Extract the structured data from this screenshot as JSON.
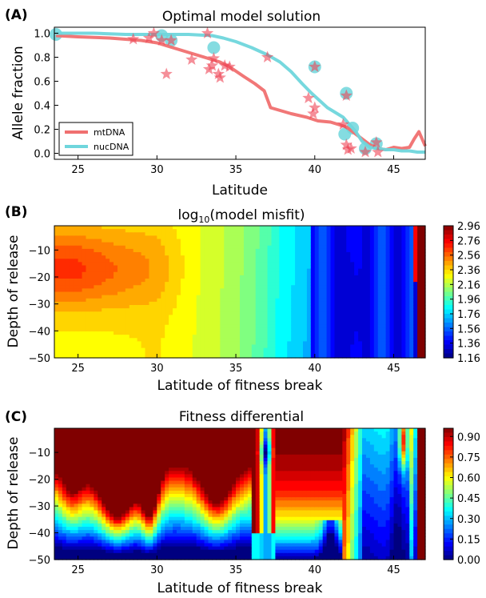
{
  "chart_data": [
    {
      "panel_label": "(A)",
      "type": "line",
      "title": "Optimal model solution",
      "xlabel": "Latitude",
      "ylabel": "Allele fraction",
      "xlim": [
        23.5,
        47.0
      ],
      "ylim": [
        -0.05,
        1.05
      ],
      "xticks": [
        "25",
        "30",
        "35",
        "40",
        "45"
      ],
      "yticks": [
        "0.0",
        "0.2",
        "0.4",
        "0.6",
        "0.8",
        "1.0"
      ],
      "legend": {
        "position": "lower-left",
        "entries": [
          "mtDNA",
          "nucDNA"
        ]
      },
      "series": [
        {
          "name": "mtDNA",
          "color": "#f07070",
          "x": [
            23.6,
            25.0,
            27.0,
            29.0,
            30.0,
            31.0,
            32.0,
            33.0,
            34.0,
            34.6,
            35.5,
            36.2,
            36.8,
            37.2,
            38.5,
            39.5,
            40.2,
            41.0,
            41.5,
            42.0,
            42.5,
            43.0,
            43.5,
            44.0,
            44.5,
            45.0,
            45.5,
            46.0,
            46.3,
            46.6,
            47.0
          ],
          "y": [
            0.98,
            0.97,
            0.96,
            0.94,
            0.92,
            0.88,
            0.84,
            0.8,
            0.76,
            0.72,
            0.64,
            0.58,
            0.52,
            0.38,
            0.33,
            0.3,
            0.27,
            0.26,
            0.24,
            0.22,
            0.17,
            0.12,
            0.07,
            0.04,
            0.03,
            0.05,
            0.04,
            0.05,
            0.12,
            0.18,
            0.06
          ]
        },
        {
          "name": "nucDNA",
          "color": "#6fd6dc",
          "x": [
            23.6,
            26.0,
            28.0,
            30.0,
            32.0,
            33.5,
            34.2,
            35.0,
            36.0,
            37.0,
            37.8,
            38.5,
            39.2,
            39.8,
            40.3,
            40.8,
            41.3,
            41.8,
            42.2,
            42.6,
            43.0,
            43.5,
            44.0,
            44.5,
            45.0,
            45.5,
            46.0,
            46.5,
            47.0
          ],
          "y": [
            1.0,
            1.0,
            0.99,
            0.99,
            0.99,
            0.98,
            0.96,
            0.93,
            0.88,
            0.82,
            0.76,
            0.68,
            0.58,
            0.5,
            0.44,
            0.38,
            0.34,
            0.3,
            0.24,
            0.18,
            0.1,
            0.05,
            0.04,
            0.03,
            0.03,
            0.02,
            0.02,
            0.01,
            0.01
          ]
        },
        {
          "name": "mtDNA observations",
          "marker": "star",
          "color": "#ee4455",
          "points": [
            [
              28.5,
              0.95
            ],
            [
              29.5,
              0.96
            ],
            [
              29.8,
              1.0
            ],
            [
              30.3,
              0.94
            ],
            [
              30.6,
              0.66
            ],
            [
              30.9,
              0.94
            ],
            [
              32.2,
              0.78
            ],
            [
              33.2,
              1.0
            ],
            [
              33.3,
              0.7
            ],
            [
              33.5,
              0.73
            ],
            [
              33.6,
              0.79
            ],
            [
              33.9,
              0.66
            ],
            [
              34.0,
              0.63
            ],
            [
              34.3,
              0.73
            ],
            [
              34.6,
              0.72
            ],
            [
              37.0,
              0.8
            ],
            [
              39.6,
              0.46
            ],
            [
              39.9,
              0.33
            ],
            [
              40.0,
              0.38
            ],
            [
              40.0,
              0.72
            ],
            [
              41.8,
              0.24
            ],
            [
              42.0,
              0.48
            ],
            [
              42.0,
              0.07
            ],
            [
              42.1,
              0.03
            ],
            [
              42.3,
              0.04
            ],
            [
              43.2,
              0.01
            ],
            [
              43.9,
              0.09
            ],
            [
              44.0,
              0.01
            ]
          ]
        },
        {
          "name": "nucDNA observations",
          "marker": "circle",
          "color": "#6fd6dc",
          "points": [
            [
              23.6,
              0.99
            ],
            [
              30.3,
              0.98
            ],
            [
              30.9,
              0.94
            ],
            [
              33.6,
              0.88
            ],
            [
              40.0,
              0.72
            ],
            [
              41.9,
              0.16
            ],
            [
              42.0,
              0.5
            ],
            [
              42.4,
              0.21
            ],
            [
              43.2,
              0.04
            ],
            [
              43.9,
              0.08
            ]
          ]
        }
      ]
    },
    {
      "panel_label": "(B)",
      "type": "heatmap",
      "title": "log",
      "title_sub": "10",
      "title_rest": "(model misfit)",
      "xlabel": "Latitude of fitness break",
      "ylabel": "Depth of release",
      "xlim": [
        23.5,
        47.0
      ],
      "ylim": [
        -50,
        -1
      ],
      "xticks": [
        "25",
        "30",
        "35",
        "40",
        "45"
      ],
      "yticks": [
        "−10",
        "−20",
        "−30",
        "−40",
        "−50"
      ],
      "colorbar_ticks": [
        "2.96",
        "2.76",
        "2.56",
        "2.36",
        "2.16",
        "1.96",
        "1.76",
        "1.56",
        "1.36",
        "1.16"
      ],
      "range": [
        1.16,
        2.96
      ],
      "colormap": "jet"
    },
    {
      "panel_label": "(C)",
      "type": "heatmap",
      "title": "Fitness differential",
      "xlabel": "Latitude of fitness break",
      "ylabel": "Depth of release",
      "xlim": [
        23.5,
        47.0
      ],
      "ylim": [
        -50,
        -1
      ],
      "xticks": [
        "25",
        "30",
        "35",
        "40",
        "45"
      ],
      "yticks": [
        "−10",
        "−20",
        "−30",
        "−40",
        "−50"
      ],
      "colorbar_ticks": [
        "0.90",
        "0.75",
        "0.60",
        "0.45",
        "0.30",
        "0.15",
        "0.00"
      ],
      "range": [
        0.0,
        0.96
      ],
      "colormap": "jet"
    }
  ]
}
